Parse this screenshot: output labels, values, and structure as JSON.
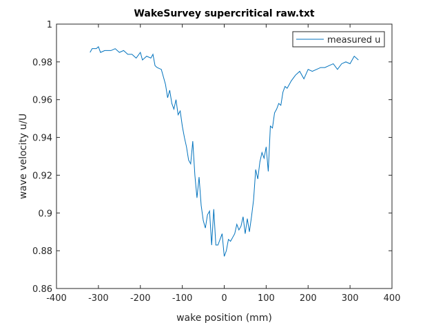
{
  "chart_data": {
    "type": "line",
    "title": "WakeSurvey supercritical raw.txt",
    "x_label": "wake position (mm)",
    "y_label": "wave velocity u/U",
    "x": [
      -320,
      -315,
      -305,
      -300,
      -295,
      -285,
      -270,
      -260,
      -250,
      -240,
      -230,
      -220,
      -210,
      -200,
      -195,
      -185,
      -175,
      -170,
      -165,
      -160,
      -150,
      -145,
      -140,
      -135,
      -130,
      -125,
      -120,
      -115,
      -110,
      -105,
      -100,
      -95,
      -90,
      -85,
      -80,
      -75,
      -70,
      -65,
      -60,
      -55,
      -50,
      -45,
      -40,
      -35,
      -30,
      -25,
      -20,
      -15,
      -10,
      -5,
      0,
      5,
      10,
      15,
      20,
      25,
      30,
      35,
      40,
      45,
      50,
      55,
      60,
      65,
      70,
      75,
      80,
      85,
      90,
      95,
      100,
      105,
      110,
      115,
      120,
      125,
      130,
      135,
      140,
      145,
      150,
      160,
      170,
      180,
      190,
      200,
      210,
      220,
      230,
      240,
      250,
      260,
      270,
      280,
      290,
      300,
      310,
      320
    ],
    "series": [
      {
        "name": "measured u",
        "color": "#0072bd",
        "values": [
          0.985,
          0.987,
          0.987,
          0.988,
          0.985,
          0.986,
          0.986,
          0.987,
          0.985,
          0.986,
          0.984,
          0.984,
          0.982,
          0.985,
          0.981,
          0.983,
          0.982,
          0.984,
          0.978,
          0.977,
          0.976,
          0.972,
          0.968,
          0.961,
          0.965,
          0.958,
          0.955,
          0.96,
          0.952,
          0.954,
          0.946,
          0.94,
          0.935,
          0.928,
          0.926,
          0.938,
          0.92,
          0.908,
          0.919,
          0.904,
          0.896,
          0.892,
          0.899,
          0.901,
          0.883,
          0.902,
          0.883,
          0.883,
          0.886,
          0.889,
          0.877,
          0.88,
          0.886,
          0.885,
          0.887,
          0.889,
          0.894,
          0.891,
          0.893,
          0.898,
          0.889,
          0.897,
          0.89,
          0.898,
          0.907,
          0.923,
          0.918,
          0.927,
          0.932,
          0.929,
          0.935,
          0.922,
          0.946,
          0.945,
          0.953,
          0.955,
          0.958,
          0.957,
          0.964,
          0.967,
          0.966,
          0.97,
          0.973,
          0.975,
          0.971,
          0.976,
          0.975,
          0.976,
          0.977,
          0.977,
          0.978,
          0.979,
          0.976,
          0.979,
          0.98,
          0.979,
          0.983,
          0.981
        ]
      }
    ],
    "xlim": [
      -400,
      400
    ],
    "xticks": [
      -400,
      -300,
      -200,
      -100,
      0,
      100,
      200,
      300,
      400
    ],
    "ylim": [
      0.86,
      1
    ],
    "yticks": [
      0.86,
      0.88,
      0.9,
      0.92,
      0.94,
      0.96,
      0.98,
      1
    ],
    "legend": "northeast"
  }
}
